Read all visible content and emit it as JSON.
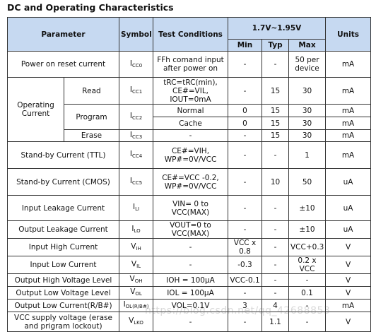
{
  "title": "DC and Operating Characteristics",
  "header": {
    "parameter": "Parameter",
    "symbol": "Symbol",
    "test_conditions": "Test Conditions",
    "voltage_range": "1.7V~1.95V",
    "min": "Min",
    "typ": "Typ",
    "max": "Max",
    "units": "Units"
  },
  "rows": {
    "por": {
      "param": "Power on reset current",
      "sym": "I",
      "sub": "CC0",
      "cond": "FFh comand input after power on",
      "min": "-",
      "typ": "-",
      "max": "50 per device",
      "unit": "mA"
    },
    "op_group": "Operating Current",
    "read": {
      "param": "Read",
      "sym": "I",
      "sub": "CC1",
      "cond": "tRC=tRC(min), CE#=VIL, IOUT=0mA",
      "min": "-",
      "typ": "15",
      "max": "30",
      "unit": "mA"
    },
    "prog_normal": {
      "param": "Program",
      "sym": "I",
      "sub": "CC2",
      "cond": "Normal",
      "min": "0",
      "typ": "15",
      "max": "30",
      "unit": "mA"
    },
    "prog_cache": {
      "cond": "Cache",
      "min": "0",
      "typ": "15",
      "max": "30",
      "unit": "mA"
    },
    "erase": {
      "param": "Erase",
      "sym": "I",
      "sub": "CC3",
      "cond": "-",
      "min": "-",
      "typ": "15",
      "max": "30",
      "unit": "mA"
    },
    "sb_ttl": {
      "param": "Stand-by Current (TTL)",
      "sym": "I",
      "sub": "CC4",
      "cond": "CE#=VIH, WP#=0V/VCC",
      "min": "-",
      "typ": "-",
      "max": "1",
      "unit": "mA"
    },
    "sb_cmos": {
      "param": "Stand-by Current (CMOS)",
      "sym": "I",
      "sub": "CC5",
      "cond": "CE#=VCC -0.2, WP#=0V/VCC",
      "min": "-",
      "typ": "10",
      "max": "50",
      "unit": "uA"
    },
    "ili": {
      "param": "Input Leakage Current",
      "sym": "I",
      "sub": "LI",
      "cond": "VIN= 0 to VCC(MAX)",
      "min": "-",
      "typ": "-",
      "max": "±10",
      "unit": "uA"
    },
    "ilo": {
      "param": "Output Leakage Current",
      "sym": "I",
      "sub": "LO",
      "cond": "VOUT=0 to VCC(MAX)",
      "min": "-",
      "typ": "-",
      "max": "±10",
      "unit": "uA"
    },
    "vih": {
      "param": "Input High Current",
      "sym": "V",
      "sub": "IH",
      "cond": "-",
      "min": "VCC x 0.8",
      "typ": "-",
      "max": "VCC+0.3",
      "unit": "V"
    },
    "vil": {
      "param": "Input Low Current",
      "sym": "V",
      "sub": "IL",
      "cond": "-",
      "min": "-0.3",
      "typ": "-",
      "max": "0.2 x VCC",
      "unit": "V"
    },
    "voh": {
      "param": "Output High Voltage Level",
      "sym": "V",
      "sub": "OH",
      "cond": "IOH = 100μA",
      "min": "VCC-0.1",
      "typ": "-",
      "max": "-",
      "unit": "V"
    },
    "vol": {
      "param": "Output Low Voltage Level",
      "sym": "V",
      "sub": "OL",
      "cond": "IOL = 100μA",
      "min": "-",
      "typ": "-",
      "max": "0.1",
      "unit": "V"
    },
    "iol": {
      "param": "Output Low Current(R/B#)",
      "sym": "I",
      "sub": "OL(R/B#)",
      "cond": "VOL=0.1V",
      "min": "3",
      "typ": "4",
      "max": "-",
      "unit": "mA"
    },
    "vlko": {
      "param": "VCC supply voltage (erase and prigram lockout)",
      "sym": "V",
      "sub": "LKO",
      "cond": "-",
      "min": "-",
      "typ": "1.1",
      "max": "-",
      "unit": "V"
    }
  },
  "watermark": "https://blog.csdn.net/qq_42688853"
}
